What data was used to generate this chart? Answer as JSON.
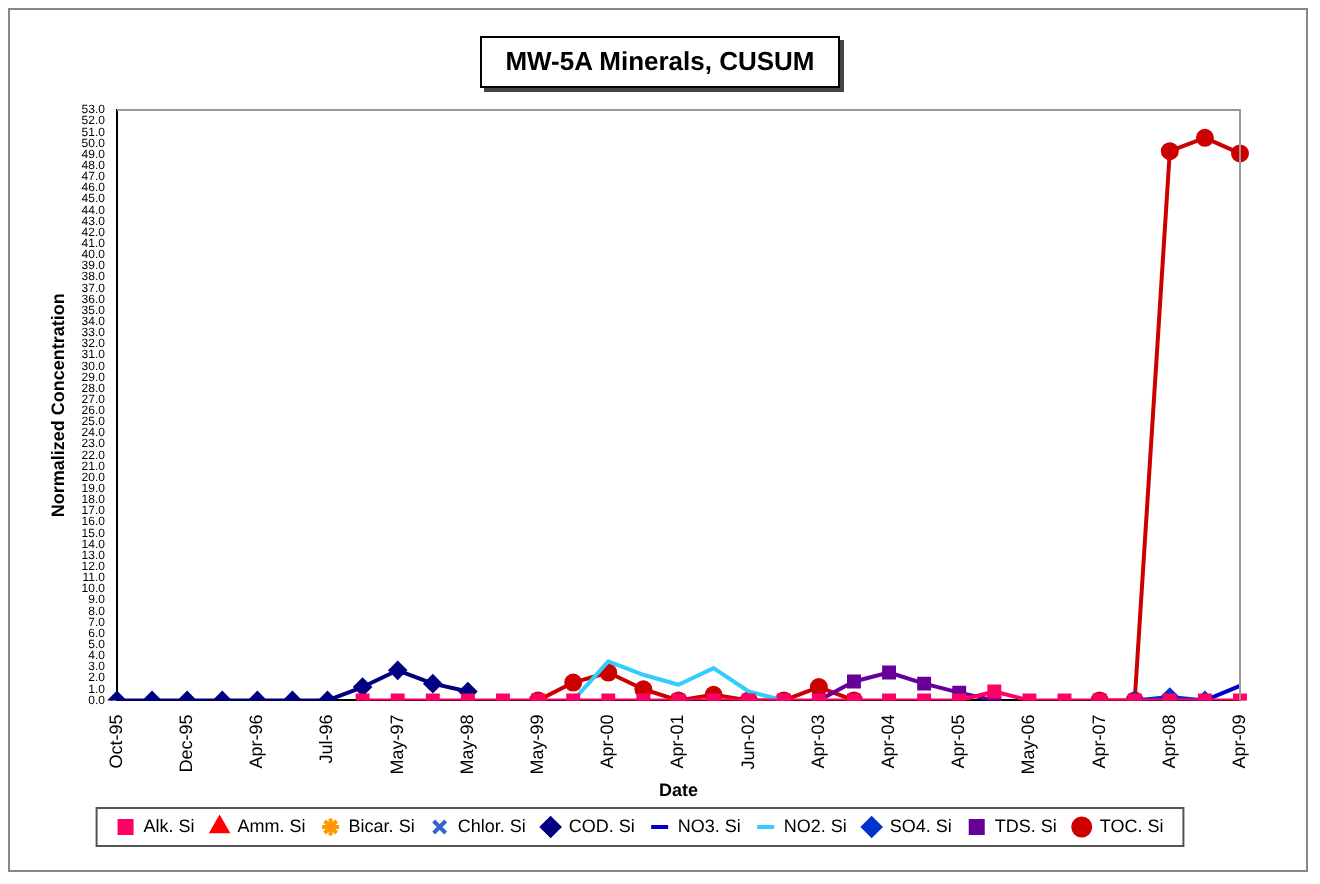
{
  "chart_data": {
    "type": "line",
    "title": "MW-5A Minerals,  CUSUM",
    "xlabel": "Date",
    "ylabel": "Normalized Concentration",
    "categories": [
      "Oct-95",
      null,
      "Dec-95",
      null,
      "Apr-96",
      null,
      "Jul-96",
      null,
      "May-97",
      null,
      "May-98",
      null,
      "May-99",
      null,
      "Apr-00",
      null,
      "Apr-01",
      null,
      "Jun-02",
      null,
      "Apr-03",
      null,
      "Apr-04",
      null,
      "Apr-05",
      null,
      "May-06",
      null,
      "Apr-07",
      null,
      "Apr-08",
      null,
      "Apr-09"
    ],
    "series": [
      {
        "name": "Alk. Si",
        "color": "#ff0066",
        "marker": "square",
        "values": [
          null,
          null,
          null,
          null,
          null,
          null,
          null,
          0,
          0,
          0,
          0,
          0,
          0,
          0,
          0,
          0,
          0,
          0,
          0,
          0,
          0,
          0,
          0,
          0,
          0,
          0.8,
          0,
          0,
          0,
          0,
          0,
          0,
          0
        ]
      },
      {
        "name": "Amm. Si",
        "color": "#ff0000",
        "marker": "triangle",
        "values": [
          null,
          null,
          null,
          null,
          null,
          null,
          null,
          null,
          null,
          null,
          null,
          null,
          null,
          null,
          null,
          null,
          null,
          null,
          null,
          null,
          null,
          null,
          null,
          null,
          null,
          null,
          null,
          null,
          null,
          null,
          null,
          null,
          null
        ]
      },
      {
        "name": "Bicar. Si",
        "color": "#ff9900",
        "marker": "star",
        "values": [
          null,
          null,
          null,
          null,
          null,
          null,
          null,
          null,
          null,
          null,
          null,
          null,
          null,
          null,
          null,
          null,
          null,
          null,
          null,
          null,
          null,
          null,
          null,
          null,
          null,
          null,
          null,
          null,
          null,
          null,
          null,
          null,
          null
        ]
      },
      {
        "name": "Chlor. Si",
        "color": "#3366cc",
        "marker": "cross",
        "values": [
          null,
          null,
          null,
          null,
          null,
          null,
          null,
          null,
          null,
          null,
          null,
          null,
          null,
          null,
          null,
          null,
          null,
          null,
          null,
          null,
          null,
          null,
          null,
          null,
          null,
          null,
          null,
          null,
          null,
          null,
          null,
          null,
          null
        ]
      },
      {
        "name": "COD. Si",
        "color": "#000080",
        "marker": "diamond",
        "values": [
          0,
          0,
          0,
          0,
          0,
          0,
          0,
          1.2,
          2.7,
          1.5,
          0.8,
          null,
          null,
          null,
          null,
          null,
          null,
          null,
          null,
          null,
          null,
          null,
          null,
          null,
          null,
          null,
          null,
          null,
          null,
          null,
          null,
          null,
          null
        ]
      },
      {
        "name": "NO3. Si",
        "color": "#0000cc",
        "marker": "none",
        "values": [
          null,
          null,
          null,
          null,
          null,
          null,
          null,
          null,
          null,
          null,
          null,
          null,
          null,
          null,
          null,
          null,
          null,
          null,
          null,
          null,
          null,
          null,
          null,
          null,
          null,
          null,
          null,
          null,
          null,
          null,
          null,
          0,
          1.3
        ]
      },
      {
        "name": "NO2. Si",
        "color": "#33ccff",
        "marker": "none",
        "values": [
          null,
          null,
          null,
          null,
          null,
          null,
          null,
          null,
          null,
          null,
          null,
          null,
          null,
          0,
          3.5,
          2.3,
          1.4,
          2.9,
          0.8,
          0,
          null,
          null,
          null,
          null,
          null,
          null,
          null,
          null,
          null,
          null,
          null,
          null,
          null
        ]
      },
      {
        "name": "SO4. Si",
        "color": "#0033cc",
        "marker": "diamond",
        "values": [
          null,
          null,
          null,
          null,
          null,
          null,
          null,
          null,
          null,
          null,
          null,
          null,
          null,
          null,
          null,
          null,
          null,
          null,
          null,
          null,
          null,
          null,
          null,
          null,
          null,
          null,
          null,
          null,
          null,
          0,
          0.3,
          0,
          null
        ]
      },
      {
        "name": "TDS. Si",
        "color": "#660099",
        "marker": "square",
        "values": [
          null,
          null,
          null,
          null,
          null,
          null,
          null,
          null,
          null,
          null,
          null,
          null,
          null,
          null,
          null,
          null,
          null,
          null,
          null,
          null,
          0,
          1.7,
          2.5,
          1.5,
          0.7,
          0,
          null,
          null,
          null,
          null,
          null,
          null,
          null
        ]
      },
      {
        "name": "TOC. Si",
        "color": "#cc0000",
        "marker": "circle",
        "values": [
          null,
          null,
          null,
          null,
          null,
          null,
          null,
          null,
          null,
          null,
          null,
          null,
          0,
          1.6,
          2.5,
          1.0,
          0,
          0.5,
          0,
          0,
          1.2,
          0,
          null,
          null,
          null,
          null,
          null,
          null,
          0,
          0,
          49.3,
          50.5,
          49.1
        ]
      }
    ],
    "ylim": [
      0,
      53
    ],
    "yticks": [
      {
        "value": 0,
        "label": "0.0"
      },
      {
        "value": 1,
        "label": "1.0"
      },
      {
        "value": 2,
        "label": "2.0"
      },
      {
        "value": 3,
        "label": "3.0"
      },
      {
        "value": 4,
        "label": "4.0"
      },
      {
        "value": 5,
        "label": "5.0"
      },
      {
        "value": 6,
        "label": "6.0"
      },
      {
        "value": 7,
        "label": "7.0"
      },
      {
        "value": 8,
        "label": "8.0"
      },
      {
        "value": 9,
        "label": "9.0"
      },
      {
        "value": 10,
        "label": "10.0"
      },
      {
        "value": 11,
        "label": "11.0"
      },
      {
        "value": 12,
        "label": "12.0"
      },
      {
        "value": 13,
        "label": "13.0"
      },
      {
        "value": 14,
        "label": "14.0"
      },
      {
        "value": 15,
        "label": "15.0"
      },
      {
        "value": 16,
        "label": "16.0"
      },
      {
        "value": 17,
        "label": "17.0"
      },
      {
        "value": 18,
        "label": "18.0"
      },
      {
        "value": 19,
        "label": "19.0"
      },
      {
        "value": 20,
        "label": "20.0"
      },
      {
        "value": 21,
        "label": "21.0"
      },
      {
        "value": 22,
        "label": "22.0"
      },
      {
        "value": 23,
        "label": "23.0"
      },
      {
        "value": 24,
        "label": "24.0"
      },
      {
        "value": 25,
        "label": "25.0"
      },
      {
        "value": 26,
        "label": "26.0"
      },
      {
        "value": 27,
        "label": "27.0"
      },
      {
        "value": 28,
        "label": "28.0"
      },
      {
        "value": 29,
        "label": "29.0"
      },
      {
        "value": 30,
        "label": "30.0"
      },
      {
        "value": 31,
        "label": "31.0"
      },
      {
        "value": 32,
        "label": "32.0"
      },
      {
        "value": 33,
        "label": "33.0"
      },
      {
        "value": 34,
        "label": "34.0"
      },
      {
        "value": 35,
        "label": "35.0"
      },
      {
        "value": 36,
        "label": "36.0"
      },
      {
        "value": 37,
        "label": "37.0"
      },
      {
        "value": 38,
        "label": "38.0"
      },
      {
        "value": 39,
        "label": "39.0"
      },
      {
        "value": 40,
        "label": "40.0"
      },
      {
        "value": 41,
        "label": "41.0"
      },
      {
        "value": 42,
        "label": "42.0"
      },
      {
        "value": 43,
        "label": "43.0"
      },
      {
        "value": 44,
        "label": "44.0"
      },
      {
        "value": 45,
        "label": "45.0"
      },
      {
        "value": 46,
        "label": "46.0"
      },
      {
        "value": 47,
        "label": "47.0"
      },
      {
        "value": 48,
        "label": "48.0"
      },
      {
        "value": 49,
        "label": "49.0"
      },
      {
        "value": 50,
        "label": "50.0"
      },
      {
        "value": 51,
        "label": "51.0"
      },
      {
        "value": 52,
        "label": "52.0"
      },
      {
        "value": 53,
        "label": "53.0"
      }
    ],
    "grid": false,
    "legend": "bottom"
  }
}
